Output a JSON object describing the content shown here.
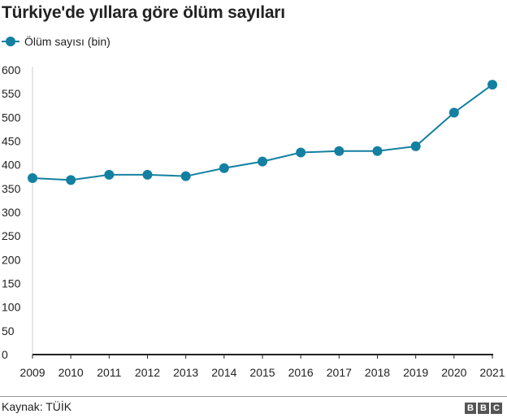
{
  "title": "Türkiye'de yıllara göre ölüm sayıları",
  "source": "Kaynak: TÜİK",
  "logo": "BBC",
  "chart_data": {
    "type": "line",
    "title": "Türkiye'de yıllara göre ölüm sayıları",
    "xlabel": "",
    "ylabel": "",
    "x": [
      "2009",
      "2010",
      "2011",
      "2012",
      "2013",
      "2014",
      "2015",
      "2016",
      "2017",
      "2018",
      "2019",
      "2020",
      "2021"
    ],
    "series": [
      {
        "name": "Ölüm sayısı (bin)",
        "color": "#1380A1",
        "values": [
          372,
          368,
          379,
          379,
          376,
          393,
          407,
          426,
          429,
          429,
          439,
          510,
          569
        ]
      }
    ],
    "yticks": [
      0,
      50,
      100,
      150,
      200,
      250,
      300,
      350,
      400,
      450,
      500,
      550,
      600
    ],
    "ylim": [
      0,
      600
    ],
    "grid": false,
    "legend": "top-left"
  }
}
